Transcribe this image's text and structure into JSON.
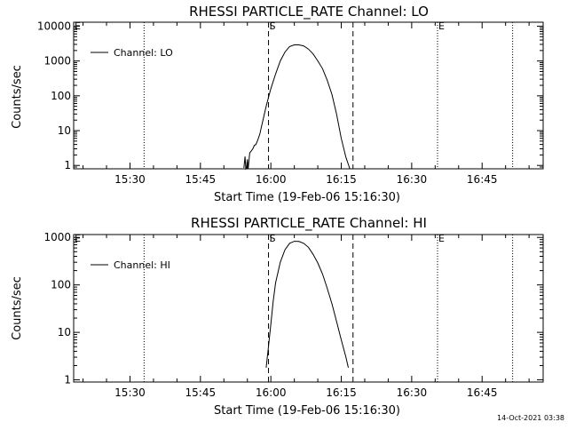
{
  "chart_data": [
    {
      "type": "line",
      "title": "RHESSI PARTICLE_RATE Channel: LO",
      "xlabel": "Start Time (19-Feb-06 15:16:30)",
      "ylabel": "Counts/sec",
      "yscale": "log",
      "ylim": [
        0.8,
        13000
      ],
      "xlim": [
        "15:18:00",
        "16:58:00"
      ],
      "x_ticks": [
        "15:30",
        "15:45",
        "16:00",
        "16:15",
        "16:30",
        "16:45"
      ],
      "y_ticks": [
        {
          "value": 1,
          "label": "1"
        },
        {
          "value": 10,
          "label": "10"
        },
        {
          "value": 100,
          "label": "100"
        },
        {
          "value": 1000,
          "label": "1000"
        },
        {
          "value": 10000,
          "label": "10000"
        }
      ],
      "legend": {
        "position": "top-left"
      },
      "markers": [
        {
          "time": "15:18:00",
          "label": "E",
          "style": "none"
        },
        {
          "time": "15:33:00",
          "label": "",
          "style": "dotted"
        },
        {
          "time": "15:59:30",
          "label": "S",
          "style": "dashed"
        },
        {
          "time": "16:17:30",
          "label": "",
          "style": "dashed"
        },
        {
          "time": "16:35:30",
          "label": "E",
          "style": "dotted"
        },
        {
          "time": "16:51:30",
          "label": "",
          "style": "dotted"
        }
      ],
      "series": [
        {
          "name": "Channel: LO",
          "x": [
            "15:54:15",
            "15:54:30",
            "15:54:40",
            "15:54:50",
            "15:55:00",
            "15:55:10",
            "15:55:30",
            "15:55:50",
            "15:56:10",
            "15:56:30",
            "15:56:50",
            "15:57:15",
            "15:57:40",
            "15:58:00",
            "15:58:30",
            "15:59:00",
            "15:59:30",
            "16:00:00",
            "16:01:00",
            "16:02:00",
            "16:03:00",
            "16:04:00",
            "16:05:00",
            "16:06:00",
            "16:07:00",
            "16:08:00",
            "16:09:00",
            "16:10:00",
            "16:11:00",
            "16:12:00",
            "16:13:00",
            "16:14:00",
            "16:15:00",
            "16:16:00",
            "16:16:50"
          ],
          "y": [
            0.85,
            1.8,
            0.8,
            0.85,
            1.5,
            0.8,
            2.3,
            2.6,
            3.0,
            3.8,
            4.0,
            5.5,
            8,
            13,
            25,
            50,
            90,
            160,
            420,
            1000,
            1800,
            2600,
            2900,
            2900,
            2700,
            2200,
            1600,
            1000,
            600,
            280,
            110,
            30,
            6,
            1.7,
            0.8
          ]
        }
      ]
    },
    {
      "type": "line",
      "title": "RHESSI PARTICLE_RATE Channel: HI",
      "xlabel": "Start Time (19-Feb-06 15:16:30)",
      "ylabel": "Counts/sec",
      "yscale": "log",
      "ylim": [
        0.9,
        1150
      ],
      "xlim": [
        "15:18:00",
        "16:58:00"
      ],
      "x_ticks": [
        "15:30",
        "15:45",
        "16:00",
        "16:15",
        "16:30",
        "16:45"
      ],
      "y_ticks": [
        {
          "value": 1,
          "label": "1"
        },
        {
          "value": 10,
          "label": "10"
        },
        {
          "value": 100,
          "label": "100"
        },
        {
          "value": 1000,
          "label": "1000"
        }
      ],
      "legend": {
        "position": "top-left"
      },
      "markers": [
        {
          "time": "15:18:00",
          "label": "E",
          "style": "none"
        },
        {
          "time": "15:33:00",
          "label": "",
          "style": "dotted"
        },
        {
          "time": "15:59:30",
          "label": "S",
          "style": "dashed"
        },
        {
          "time": "16:17:30",
          "label": "",
          "style": "dashed"
        },
        {
          "time": "16:35:30",
          "label": "E",
          "style": "dotted"
        },
        {
          "time": "16:51:30",
          "label": "",
          "style": "dotted"
        }
      ],
      "series": [
        {
          "name": "Channel: HI",
          "x": [
            "15:59:00",
            "15:59:30",
            "16:00:00",
            "16:00:30",
            "16:01:00",
            "16:02:00",
            "16:03:00",
            "16:04:00",
            "16:05:00",
            "16:06:00",
            "16:07:00",
            "16:08:00",
            "16:09:00",
            "16:10:00",
            "16:11:00",
            "16:12:00",
            "16:13:00",
            "16:14:00",
            "16:15:00",
            "16:16:00",
            "16:16:30"
          ],
          "y": [
            1.8,
            5,
            15,
            45,
            110,
            300,
            550,
            750,
            830,
            820,
            750,
            620,
            440,
            290,
            170,
            85,
            40,
            17,
            7,
            3,
            1.8
          ]
        }
      ]
    }
  ],
  "timestamp": "14-Oct-2021 03:38"
}
